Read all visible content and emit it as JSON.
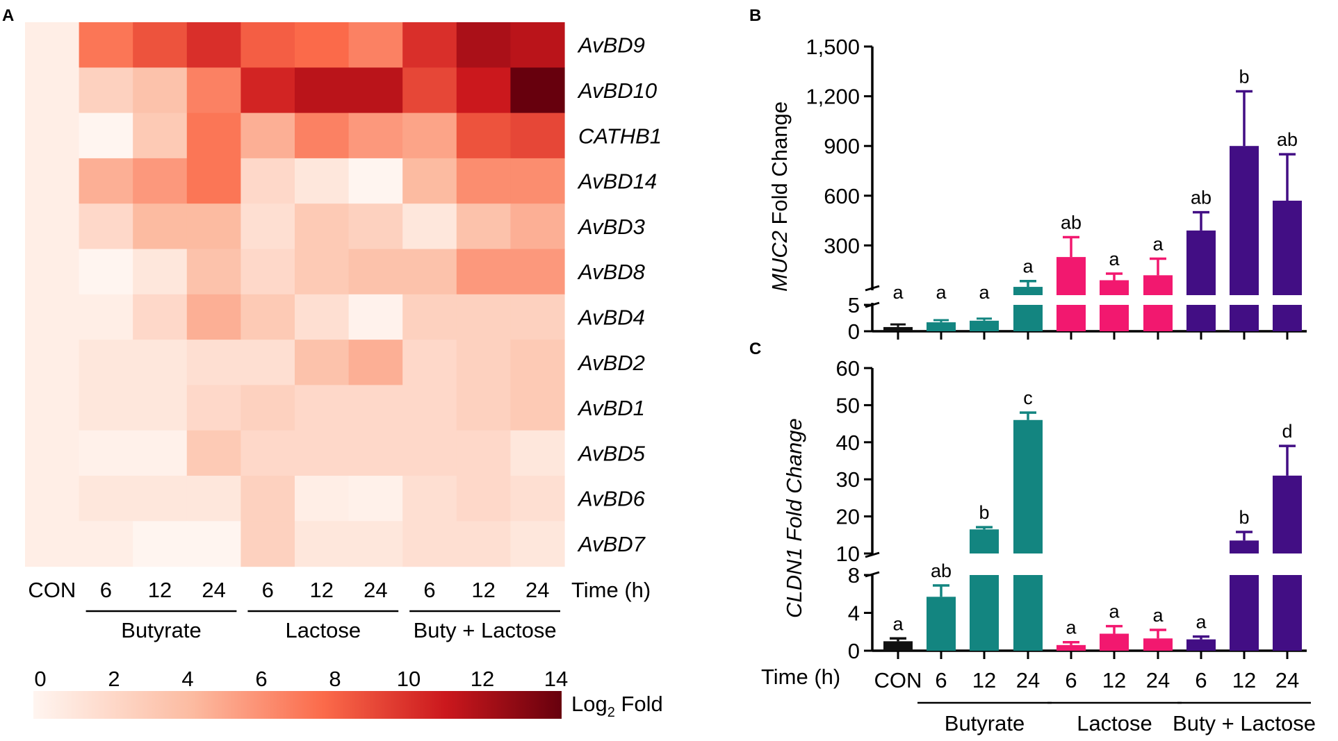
{
  "panels": {
    "a": "A",
    "b": "B",
    "c": "C"
  },
  "chart_data": [
    {
      "type": "heatmap",
      "panel": "A",
      "rows": [
        "AvBD9",
        "AvBD10",
        "CATHB1",
        "AvBD14",
        "AvBD3",
        "AvBD8",
        "AvBD4",
        "AvBD2",
        "AvBD1",
        "AvBD5",
        "AvBD6",
        "AvBD7"
      ],
      "columns": [
        "CON",
        "6",
        "12",
        "24",
        "6",
        "12",
        "24",
        "6",
        "12",
        "24"
      ],
      "column_groups": [
        {
          "name": "Butyrate",
          "columns": [
            1,
            2,
            3
          ]
        },
        {
          "name": "Lactose",
          "columns": [
            4,
            5,
            6
          ]
        },
        {
          "name": "Buty + Lactose",
          "columns": [
            7,
            8,
            9
          ]
        }
      ],
      "time_label": "Time (h)",
      "values": [
        [
          0.5,
          7.0,
          8.5,
          10.0,
          8.0,
          7.5,
          6.5,
          10.0,
          12.0,
          11.5
        ],
        [
          0.5,
          2.5,
          3.5,
          6.5,
          10.5,
          11.5,
          11.5,
          9.0,
          11.0,
          14.0
        ],
        [
          0.5,
          0.0,
          3.0,
          7.0,
          4.5,
          6.5,
          5.5,
          5.0,
          8.5,
          9.0
        ],
        [
          0.5,
          4.5,
          5.5,
          7.0,
          2.0,
          1.0,
          0.0,
          4.0,
          6.0,
          6.0
        ],
        [
          0.5,
          2.0,
          4.0,
          4.0,
          1.5,
          3.0,
          2.5,
          1.0,
          3.5,
          4.5
        ],
        [
          0.5,
          0.0,
          1.0,
          3.5,
          2.0,
          3.0,
          3.5,
          3.5,
          5.5,
          5.5
        ],
        [
          0.5,
          0.5,
          2.0,
          4.5,
          3.0,
          1.5,
          0.2,
          2.5,
          2.5,
          2.5
        ],
        [
          0.5,
          1.0,
          1.0,
          1.5,
          1.5,
          3.5,
          4.5,
          2.0,
          2.5,
          3.0
        ],
        [
          0.5,
          1.0,
          1.0,
          2.0,
          2.5,
          2.0,
          2.0,
          2.0,
          2.5,
          3.0
        ],
        [
          0.5,
          0.3,
          0.3,
          3.0,
          2.0,
          2.0,
          2.0,
          2.0,
          2.0,
          1.0
        ],
        [
          0.5,
          1.0,
          1.0,
          1.0,
          2.5,
          0.5,
          0.3,
          1.5,
          2.0,
          1.5
        ],
        [
          0.5,
          0.5,
          0.0,
          0.0,
          2.5,
          1.0,
          1.0,
          1.5,
          1.5,
          1.0
        ]
      ],
      "colorbar": {
        "ticks": [
          "0",
          "2",
          "4",
          "6",
          "8",
          "10",
          "12",
          "14"
        ],
        "label": "Log",
        "label_sub": "2",
        "label_rest": " Fold",
        "range": [
          0,
          14
        ]
      },
      "colors": {
        "low": "#fff5f0",
        "mid1": "#fcbba1",
        "mid2": "#fb6a4a",
        "mid3": "#cb181d",
        "high": "#67000d"
      }
    },
    {
      "type": "bar",
      "panel": "B",
      "ylabel_italic": "MUC2",
      "ylabel_rest": " Fold Change",
      "categories": [
        "CON",
        "6",
        "12",
        "24",
        "6",
        "12",
        "24",
        "6",
        "12",
        "24"
      ],
      "groups": [
        "CON",
        "Butyrate",
        "Butyrate",
        "Butyrate",
        "Lactose",
        "Lactose",
        "Lactose",
        "Buty + Lactose",
        "Buty + Lactose",
        "Buty + Lactose"
      ],
      "values": [
        0.8,
        1.7,
        2.0,
        50,
        230,
        90,
        120,
        390,
        900,
        570
      ],
      "errors": [
        0.5,
        0.4,
        0.4,
        35,
        120,
        40,
        100,
        110,
        330,
        280
      ],
      "letters": [
        "a",
        "a",
        "a",
        "a",
        "ab",
        "a",
        "a",
        "ab",
        "b",
        "ab"
      ],
      "broken_axis": {
        "lower": [
          0,
          5
        ],
        "upper": [
          0,
          1500
        ]
      },
      "y_ticks_upper": [
        "300",
        "600",
        "900",
        "1,200",
        "1,500"
      ],
      "y_ticks_lower": [
        "0",
        "5"
      ],
      "bar_colors": [
        "#111111",
        "#138580",
        "#138580",
        "#138580",
        "#f2186f",
        "#f2186f",
        "#f2186f",
        "#420e84",
        "#420e84",
        "#420e84"
      ]
    },
    {
      "type": "bar",
      "panel": "C",
      "ylabel": "CLDN1 Fold Change",
      "categories": [
        "CON",
        "6",
        "12",
        "24",
        "6",
        "12",
        "24",
        "6",
        "12",
        "24"
      ],
      "values": [
        1.0,
        5.7,
        16.5,
        46,
        0.6,
        1.8,
        1.3,
        1.2,
        13.5,
        31
      ],
      "errors": [
        0.3,
        1.2,
        0.6,
        2,
        0.3,
        0.8,
        0.9,
        0.3,
        2.3,
        8
      ],
      "letters": [
        "a",
        "ab",
        "b",
        "c",
        "a",
        "a",
        "a",
        "a",
        "b",
        "d"
      ],
      "broken_axis": {
        "lower": [
          0,
          8
        ],
        "upper": [
          10,
          60
        ]
      },
      "y_ticks_upper": [
        "10",
        "20",
        "30",
        "40",
        "50",
        "60"
      ],
      "y_ticks_lower": [
        "0",
        "4",
        "8"
      ],
      "time_label": "Time (h)",
      "group_labels": [
        "Butyrate",
        "Lactose",
        "Buty + Lactose"
      ]
    }
  ]
}
